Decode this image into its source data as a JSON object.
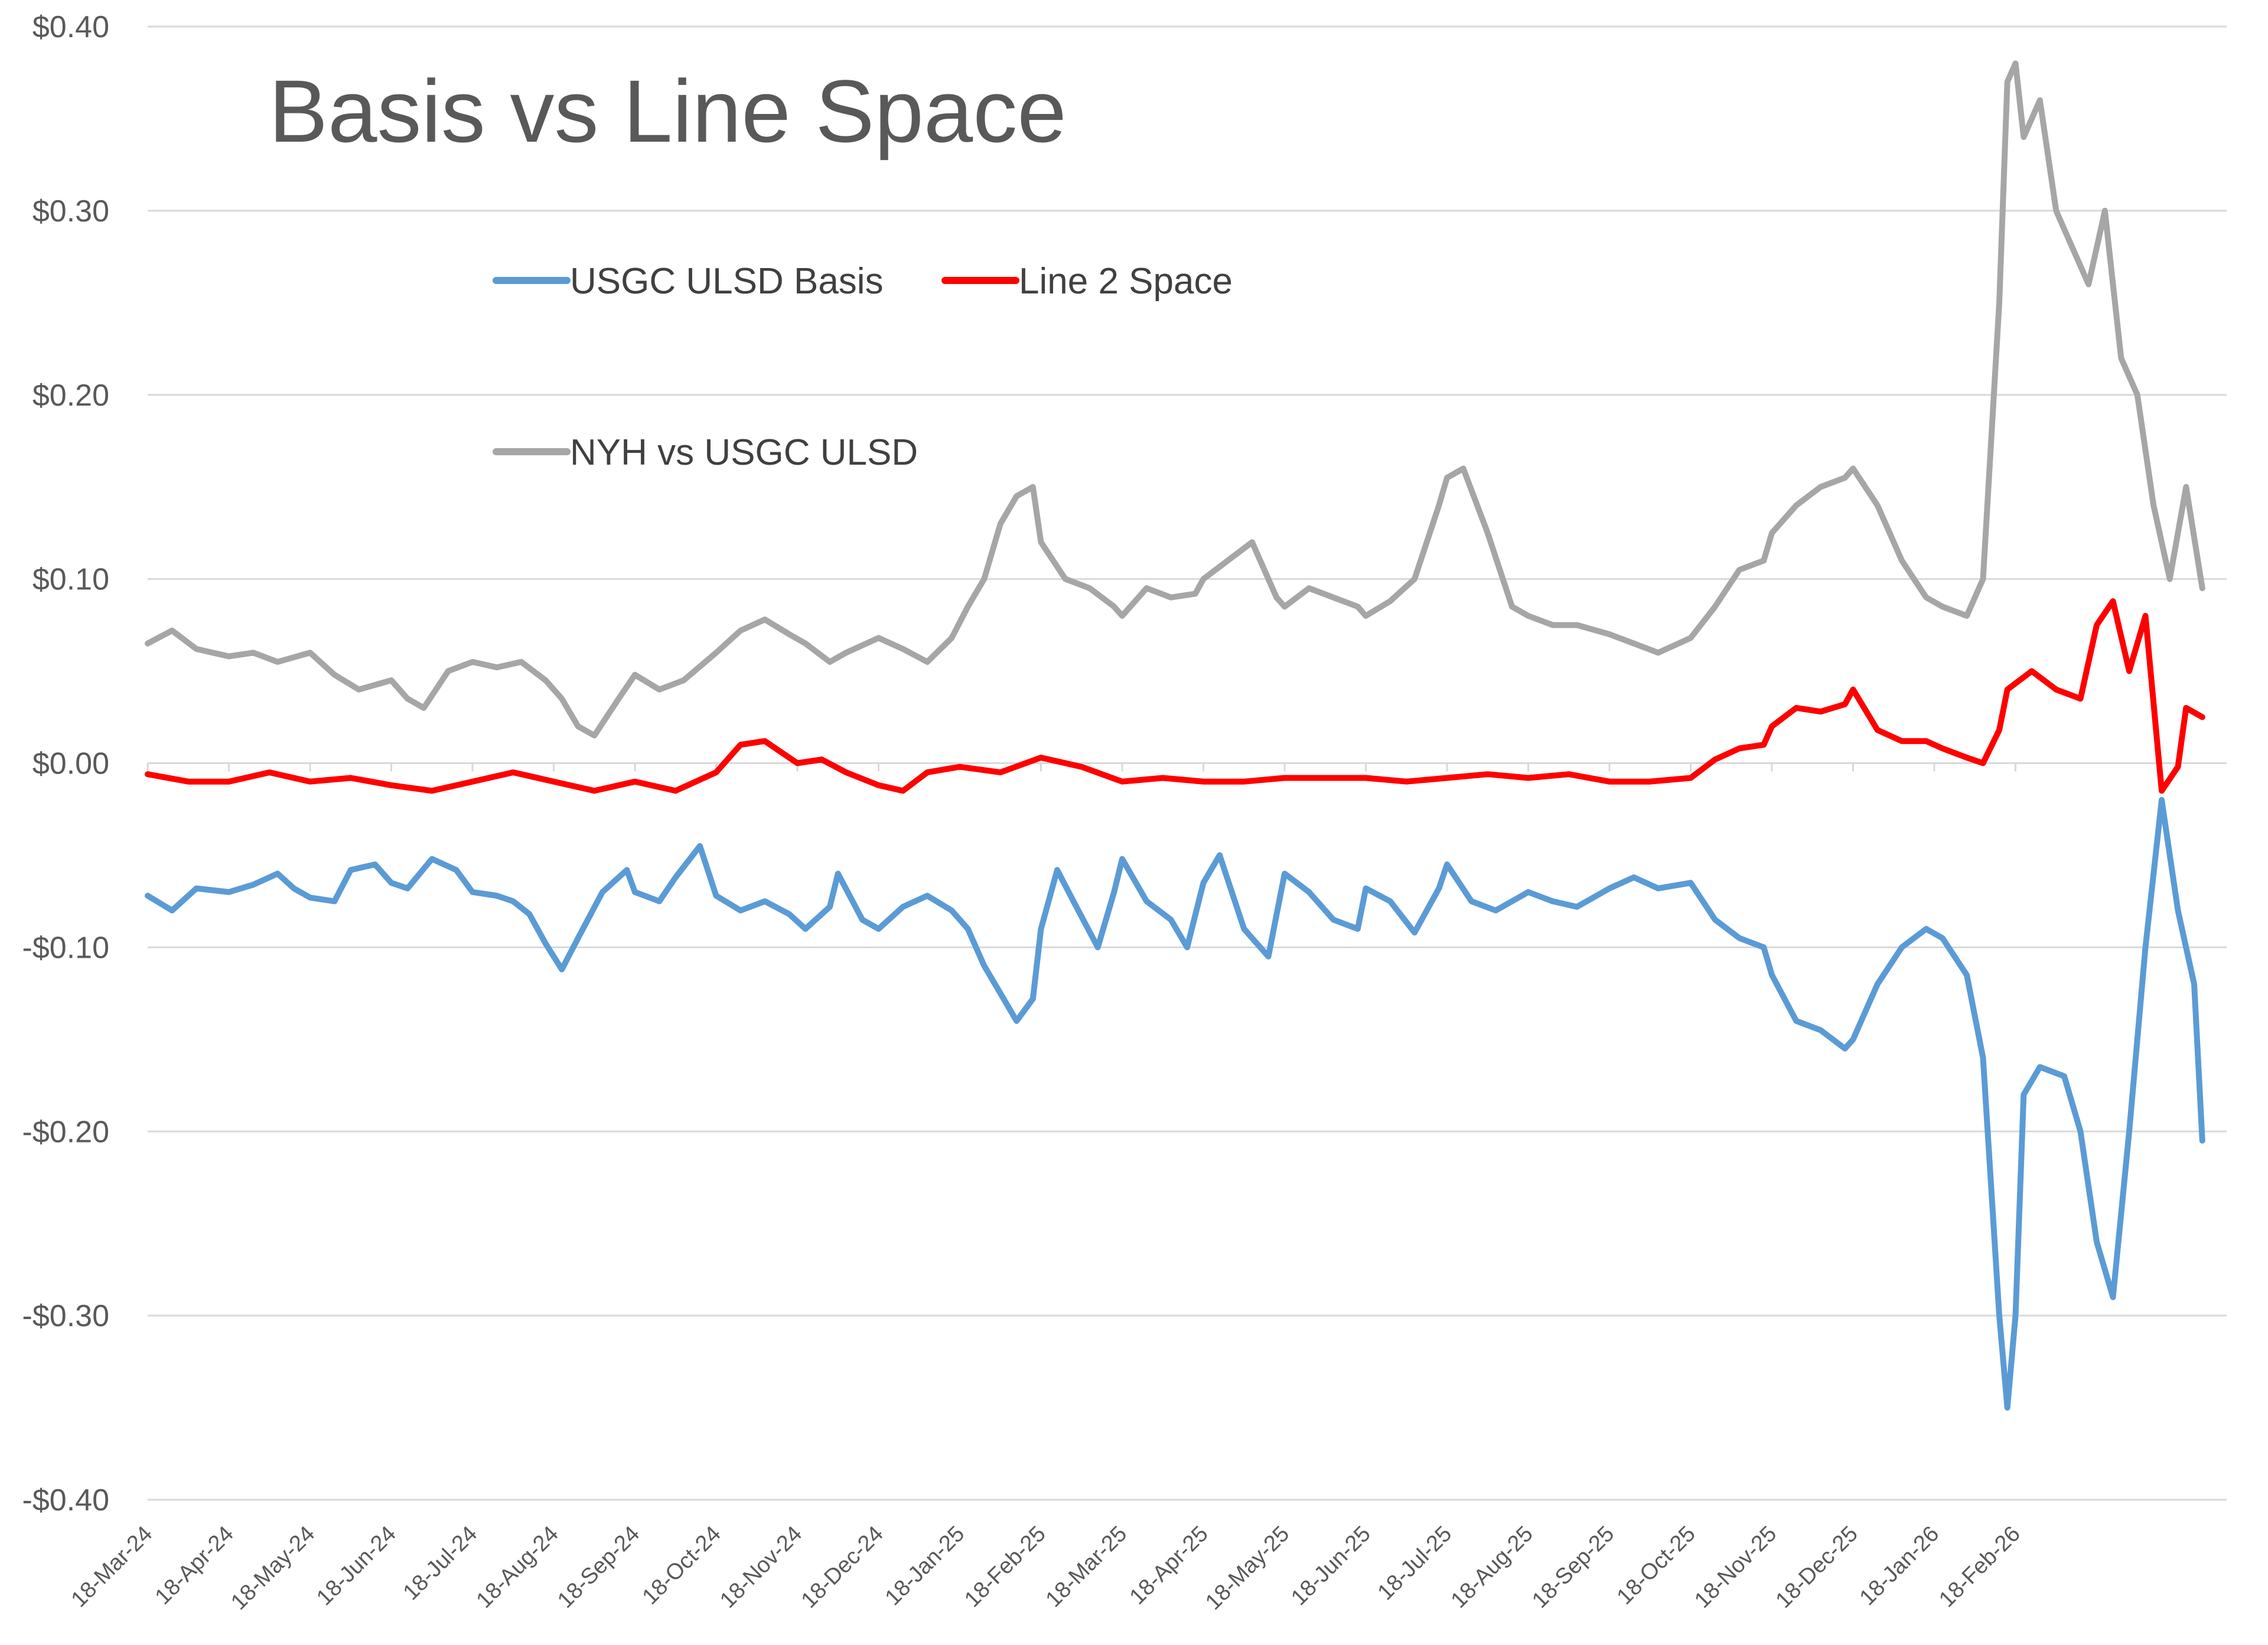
{
  "chart_data": {
    "type": "line",
    "title": "Basis vs Line Space",
    "xlabel": "",
    "ylabel": "",
    "ylim": [
      -0.4,
      0.4
    ],
    "y_ticks": [
      {
        "value": 0.4,
        "label": "$0.40"
      },
      {
        "value": 0.3,
        "label": "$0.30"
      },
      {
        "value": 0.2,
        "label": "$0.20"
      },
      {
        "value": 0.1,
        "label": "$0.10"
      },
      {
        "value": 0.0,
        "label": "$0.00"
      },
      {
        "value": -0.1,
        "label": "-$0.10"
      },
      {
        "value": -0.2,
        "label": "-$0.20"
      },
      {
        "value": -0.3,
        "label": "-$0.30"
      },
      {
        "value": -0.4,
        "label": "-$0.40"
      }
    ],
    "x_ticks": [
      "18-Mar-24",
      "18-Apr-24",
      "18-May-24",
      "18-Jun-24",
      "18-Jul-24",
      "18-Aug-24",
      "18-Sep-24",
      "18-Oct-24",
      "18-Nov-24",
      "18-Dec-24",
      "18-Jan-25",
      "18-Feb-25",
      "18-Mar-25",
      "18-Apr-25",
      "18-May-25",
      "18-Jun-25",
      "18-Jul-25",
      "18-Aug-25",
      "18-Sep-25",
      "18-Oct-25",
      "18-Nov-25",
      "18-Dec-25",
      "18-Jan-26",
      "18-Feb-26"
    ],
    "grid": true,
    "legend_placement": "top-left",
    "series": [
      {
        "name": "USGC ULSD Basis",
        "color": "#5B9BD5",
        "points": [
          [
            0,
            -0.072
          ],
          [
            0.3,
            -0.08
          ],
          [
            0.6,
            -0.068
          ],
          [
            1,
            -0.07
          ],
          [
            1.3,
            -0.066
          ],
          [
            1.6,
            -0.06
          ],
          [
            1.8,
            -0.068
          ],
          [
            2,
            -0.073
          ],
          [
            2.3,
            -0.075
          ],
          [
            2.5,
            -0.058
          ],
          [
            2.8,
            -0.055
          ],
          [
            3,
            -0.065
          ],
          [
            3.2,
            -0.068
          ],
          [
            3.5,
            -0.052
          ],
          [
            3.8,
            -0.058
          ],
          [
            4,
            -0.07
          ],
          [
            4.3,
            -0.072
          ],
          [
            4.5,
            -0.075
          ],
          [
            4.7,
            -0.082
          ],
          [
            4.9,
            -0.098
          ],
          [
            5.1,
            -0.112
          ],
          [
            5.3,
            -0.095
          ],
          [
            5.6,
            -0.07
          ],
          [
            5.9,
            -0.058
          ],
          [
            6,
            -0.07
          ],
          [
            6.3,
            -0.075
          ],
          [
            6.5,
            -0.062
          ],
          [
            6.8,
            -0.045
          ],
          [
            7,
            -0.072
          ],
          [
            7.3,
            -0.08
          ],
          [
            7.6,
            -0.075
          ],
          [
            7.9,
            -0.082
          ],
          [
            8.1,
            -0.09
          ],
          [
            8.4,
            -0.078
          ],
          [
            8.5,
            -0.06
          ],
          [
            8.8,
            -0.085
          ],
          [
            9,
            -0.09
          ],
          [
            9.3,
            -0.078
          ],
          [
            9.6,
            -0.072
          ],
          [
            9.9,
            -0.08
          ],
          [
            10.1,
            -0.09
          ],
          [
            10.3,
            -0.11
          ],
          [
            10.5,
            -0.125
          ],
          [
            10.7,
            -0.14
          ],
          [
            10.9,
            -0.128
          ],
          [
            11,
            -0.09
          ],
          [
            11.2,
            -0.058
          ],
          [
            11.4,
            -0.075
          ],
          [
            11.7,
            -0.1
          ],
          [
            11.9,
            -0.07
          ],
          [
            12,
            -0.052
          ],
          [
            12.3,
            -0.075
          ],
          [
            12.6,
            -0.085
          ],
          [
            12.8,
            -0.1
          ],
          [
            13,
            -0.065
          ],
          [
            13.2,
            -0.05
          ],
          [
            13.5,
            -0.09
          ],
          [
            13.8,
            -0.105
          ],
          [
            14,
            -0.06
          ],
          [
            14.3,
            -0.07
          ],
          [
            14.6,
            -0.085
          ],
          [
            14.9,
            -0.09
          ],
          [
            15,
            -0.068
          ],
          [
            15.3,
            -0.075
          ],
          [
            15.6,
            -0.092
          ],
          [
            15.9,
            -0.068
          ],
          [
            16,
            -0.055
          ],
          [
            16.3,
            -0.075
          ],
          [
            16.6,
            -0.08
          ],
          [
            17,
            -0.07
          ],
          [
            17.3,
            -0.075
          ],
          [
            17.6,
            -0.078
          ],
          [
            18,
            -0.068
          ],
          [
            18.3,
            -0.062
          ],
          [
            18.6,
            -0.068
          ],
          [
            19,
            -0.065
          ],
          [
            19.3,
            -0.085
          ],
          [
            19.6,
            -0.095
          ],
          [
            19.9,
            -0.1
          ],
          [
            20,
            -0.115
          ],
          [
            20.3,
            -0.14
          ],
          [
            20.6,
            -0.145
          ],
          [
            20.9,
            -0.155
          ],
          [
            21,
            -0.15
          ],
          [
            21.3,
            -0.12
          ],
          [
            21.6,
            -0.1
          ],
          [
            21.9,
            -0.09
          ],
          [
            22.1,
            -0.095
          ],
          [
            22.4,
            -0.115
          ],
          [
            22.6,
            -0.16
          ],
          [
            22.8,
            -0.3
          ],
          [
            22.9,
            -0.35
          ],
          [
            23,
            -0.3
          ],
          [
            23.1,
            -0.18
          ],
          [
            23.3,
            -0.165
          ],
          [
            23.6,
            -0.17
          ],
          [
            23.8,
            -0.2
          ],
          [
            24,
            -0.26
          ],
          [
            24.2,
            -0.29
          ],
          [
            24.4,
            -0.2
          ],
          [
            24.6,
            -0.1
          ],
          [
            24.8,
            -0.02
          ],
          [
            25,
            -0.08
          ],
          [
            25.2,
            -0.12
          ],
          [
            25.3,
            -0.205
          ]
        ]
      },
      {
        "name": "Line 2 Space",
        "color": "#FF0000",
        "points": [
          [
            0,
            -0.006
          ],
          [
            0.5,
            -0.01
          ],
          [
            1,
            -0.01
          ],
          [
            1.5,
            -0.005
          ],
          [
            2,
            -0.01
          ],
          [
            2.5,
            -0.008
          ],
          [
            3,
            -0.012
          ],
          [
            3.5,
            -0.015
          ],
          [
            4,
            -0.01
          ],
          [
            4.5,
            -0.005
          ],
          [
            5,
            -0.01
          ],
          [
            5.5,
            -0.015
          ],
          [
            6,
            -0.01
          ],
          [
            6.5,
            -0.015
          ],
          [
            7,
            -0.005
          ],
          [
            7.3,
            0.01
          ],
          [
            7.6,
            0.012
          ],
          [
            8,
            0.0
          ],
          [
            8.3,
            0.002
          ],
          [
            8.6,
            -0.005
          ],
          [
            9,
            -0.012
          ],
          [
            9.3,
            -0.015
          ],
          [
            9.6,
            -0.005
          ],
          [
            10,
            -0.002
          ],
          [
            10.5,
            -0.005
          ],
          [
            11,
            0.003
          ],
          [
            11.5,
            -0.002
          ],
          [
            12,
            -0.01
          ],
          [
            12.5,
            -0.008
          ],
          [
            13,
            -0.01
          ],
          [
            13.5,
            -0.01
          ],
          [
            14,
            -0.008
          ],
          [
            14.5,
            -0.008
          ],
          [
            15,
            -0.008
          ],
          [
            15.5,
            -0.01
          ],
          [
            16,
            -0.008
          ],
          [
            16.5,
            -0.006
          ],
          [
            17,
            -0.008
          ],
          [
            17.5,
            -0.006
          ],
          [
            18,
            -0.01
          ],
          [
            18.5,
            -0.01
          ],
          [
            19,
            -0.008
          ],
          [
            19.3,
            0.002
          ],
          [
            19.6,
            0.008
          ],
          [
            19.9,
            0.01
          ],
          [
            20,
            0.02
          ],
          [
            20.3,
            0.03
          ],
          [
            20.6,
            0.028
          ],
          [
            20.9,
            0.032
          ],
          [
            21,
            0.04
          ],
          [
            21.3,
            0.018
          ],
          [
            21.6,
            0.012
          ],
          [
            21.9,
            0.012
          ],
          [
            22.1,
            0.008
          ],
          [
            22.4,
            0.003
          ],
          [
            22.6,
            0.0
          ],
          [
            22.8,
            0.018
          ],
          [
            22.9,
            0.04
          ],
          [
            23.2,
            0.05
          ],
          [
            23.5,
            0.04
          ],
          [
            23.8,
            0.035
          ],
          [
            24,
            0.075
          ],
          [
            24.2,
            0.088
          ],
          [
            24.4,
            0.05
          ],
          [
            24.6,
            0.08
          ],
          [
            24.8,
            -0.015
          ],
          [
            25,
            -0.002
          ],
          [
            25.1,
            0.03
          ],
          [
            25.3,
            0.025
          ]
        ]
      },
      {
        "name": "NYH vs USGC ULSD",
        "color": "#A6A6A6",
        "points": [
          [
            0,
            0.065
          ],
          [
            0.3,
            0.072
          ],
          [
            0.6,
            0.062
          ],
          [
            1,
            0.058
          ],
          [
            1.3,
            0.06
          ],
          [
            1.6,
            0.055
          ],
          [
            2,
            0.06
          ],
          [
            2.3,
            0.048
          ],
          [
            2.6,
            0.04
          ],
          [
            3,
            0.045
          ],
          [
            3.2,
            0.035
          ],
          [
            3.4,
            0.03
          ],
          [
            3.7,
            0.05
          ],
          [
            4,
            0.055
          ],
          [
            4.3,
            0.052
          ],
          [
            4.6,
            0.055
          ],
          [
            4.9,
            0.045
          ],
          [
            5.1,
            0.035
          ],
          [
            5.3,
            0.02
          ],
          [
            5.5,
            0.015
          ],
          [
            5.8,
            0.035
          ],
          [
            6,
            0.048
          ],
          [
            6.3,
            0.04
          ],
          [
            6.6,
            0.045
          ],
          [
            7,
            0.06
          ],
          [
            7.3,
            0.072
          ],
          [
            7.6,
            0.078
          ],
          [
            7.9,
            0.07
          ],
          [
            8.1,
            0.065
          ],
          [
            8.4,
            0.055
          ],
          [
            8.6,
            0.06
          ],
          [
            9,
            0.068
          ],
          [
            9.3,
            0.062
          ],
          [
            9.6,
            0.055
          ],
          [
            9.9,
            0.068
          ],
          [
            10.1,
            0.085
          ],
          [
            10.3,
            0.1
          ],
          [
            10.5,
            0.13
          ],
          [
            10.7,
            0.145
          ],
          [
            10.9,
            0.15
          ],
          [
            11,
            0.12
          ],
          [
            11.3,
            0.1
          ],
          [
            11.6,
            0.095
          ],
          [
            11.9,
            0.085
          ],
          [
            12,
            0.08
          ],
          [
            12.3,
            0.095
          ],
          [
            12.6,
            0.09
          ],
          [
            12.9,
            0.092
          ],
          [
            13,
            0.1
          ],
          [
            13.3,
            0.11
          ],
          [
            13.6,
            0.12
          ],
          [
            13.9,
            0.09
          ],
          [
            14,
            0.085
          ],
          [
            14.3,
            0.095
          ],
          [
            14.6,
            0.09
          ],
          [
            14.9,
            0.085
          ],
          [
            15,
            0.08
          ],
          [
            15.3,
            0.088
          ],
          [
            15.6,
            0.1
          ],
          [
            15.9,
            0.14
          ],
          [
            16,
            0.155
          ],
          [
            16.2,
            0.16
          ],
          [
            16.5,
            0.125
          ],
          [
            16.8,
            0.085
          ],
          [
            17,
            0.08
          ],
          [
            17.3,
            0.075
          ],
          [
            17.6,
            0.075
          ],
          [
            18,
            0.07
          ],
          [
            18.3,
            0.065
          ],
          [
            18.6,
            0.06
          ],
          [
            19,
            0.068
          ],
          [
            19.3,
            0.085
          ],
          [
            19.6,
            0.105
          ],
          [
            19.9,
            0.11
          ],
          [
            20,
            0.125
          ],
          [
            20.3,
            0.14
          ],
          [
            20.6,
            0.15
          ],
          [
            20.9,
            0.155
          ],
          [
            21,
            0.16
          ],
          [
            21.3,
            0.14
          ],
          [
            21.6,
            0.11
          ],
          [
            21.9,
            0.09
          ],
          [
            22.1,
            0.085
          ],
          [
            22.4,
            0.08
          ],
          [
            22.6,
            0.1
          ],
          [
            22.8,
            0.25
          ],
          [
            22.9,
            0.37
          ],
          [
            23,
            0.38
          ],
          [
            23.1,
            0.34
          ],
          [
            23.3,
            0.36
          ],
          [
            23.5,
            0.3
          ],
          [
            23.7,
            0.28
          ],
          [
            23.9,
            0.26
          ],
          [
            24.1,
            0.3
          ],
          [
            24.3,
            0.22
          ],
          [
            24.5,
            0.2
          ],
          [
            24.7,
            0.14
          ],
          [
            24.9,
            0.1
          ],
          [
            25.1,
            0.15
          ],
          [
            25.3,
            0.095
          ]
        ]
      }
    ]
  }
}
